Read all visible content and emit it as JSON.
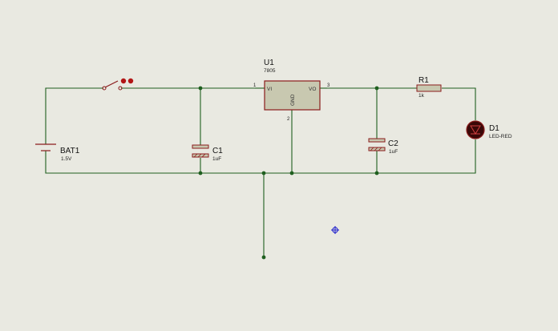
{
  "components": {
    "battery": {
      "ref": "BAT1",
      "value": "1.5V"
    },
    "cap1": {
      "ref": "C1",
      "value": "1uF"
    },
    "cap2": {
      "ref": "C2",
      "value": "1uF"
    },
    "regulator": {
      "ref": "U1",
      "value": "7805",
      "pin_vi": "VI",
      "pin_vo": "VO",
      "pin_gnd": "GND",
      "pin1": "1",
      "pin2": "2",
      "pin3": "3"
    },
    "resistor": {
      "ref": "R1",
      "value": "1k"
    },
    "led": {
      "ref": "D1",
      "value": "LED-RED"
    }
  },
  "colors": {
    "background": "#e9e9e1",
    "wire": "#1f5f1f",
    "component": "#8a1c1c",
    "component_fill": "#c8c8b0",
    "cursor": "#1a1acc"
  }
}
